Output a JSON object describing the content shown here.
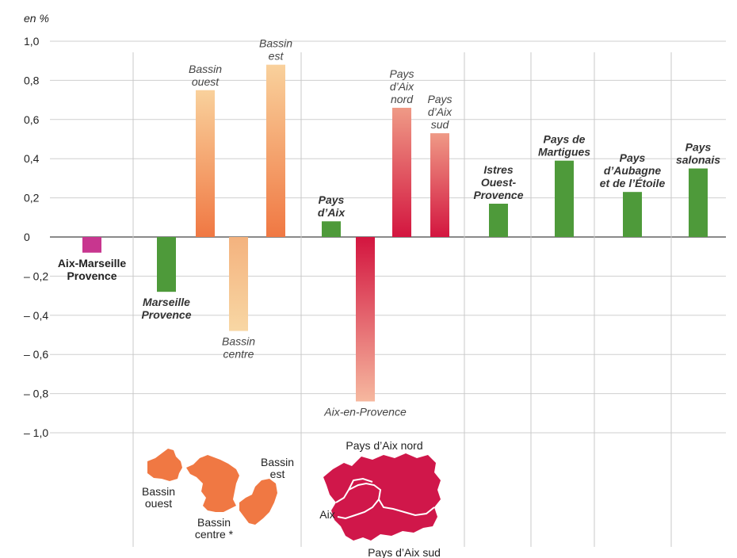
{
  "chart_data": {
    "type": "bar",
    "unit_label": "en %",
    "ylim": [
      -1.0,
      1.0
    ],
    "y_ticks": [
      "1,0",
      "0,8",
      "0,6",
      "0,4",
      "0,2",
      "0",
      "– 0,2",
      "– 0,4",
      "– 0,6",
      "– 0,8",
      "– 1,0"
    ],
    "y_tick_values": [
      1.0,
      0.8,
      0.6,
      0.4,
      0.2,
      0,
      -0.2,
      -0.4,
      -0.6,
      -0.8,
      -1.0
    ],
    "grid": true,
    "bars": [
      {
        "label": [
          "Aix-Marseille",
          "Provence"
        ],
        "value": -0.08,
        "style": "bold",
        "color": "#c8368f"
      },
      {
        "label": [
          "Marseille",
          "Provence"
        ],
        "value": -0.28,
        "style": "bold-italic",
        "color": "#4e9a3a"
      },
      {
        "label": [
          "Bassin",
          "ouest"
        ],
        "value": 0.75,
        "style": "italic",
        "color": "#f07843"
      },
      {
        "label": [
          "Bassin",
          "centre"
        ],
        "value": -0.48,
        "style": "italic",
        "color": "#f5c38f"
      },
      {
        "label": [
          "Bassin",
          "est"
        ],
        "value": 0.88,
        "style": "italic",
        "color": "#f07843"
      },
      {
        "label": [
          "Pays",
          "d’Aix"
        ],
        "value": 0.08,
        "style": "bold-italic",
        "color": "#4e9a3a"
      },
      {
        "label": [
          "Aix-en-Provence"
        ],
        "value": -0.84,
        "style": "italic",
        "color": "#d31b4a"
      },
      {
        "label": [
          "Pays",
          "d’Aix",
          "nord"
        ],
        "value": 0.66,
        "style": "italic",
        "color": "#d31b4a"
      },
      {
        "label": [
          "Pays",
          "d’Aix",
          "sud"
        ],
        "value": 0.53,
        "style": "italic",
        "color": "#d31b4a"
      },
      {
        "label": [
          "Istres",
          "Ouest-",
          "Provence"
        ],
        "value": 0.17,
        "style": "bold-italic",
        "color": "#4e9a3a"
      },
      {
        "label": [
          "Pays de",
          "Martigues"
        ],
        "value": 0.39,
        "style": "bold-italic",
        "color": "#4e9a3a"
      },
      {
        "label": [
          "Pays",
          "d’Aubagne",
          "et de l’Étoile"
        ],
        "value": 0.23,
        "style": "bold-italic",
        "color": "#4e9a3a"
      },
      {
        "label": [
          "Pays",
          "salonais"
        ],
        "value": 0.35,
        "style": "bold-italic",
        "color": "#4e9a3a"
      }
    ]
  },
  "maps": {
    "marseille_map": {
      "labels": [
        [
          "Bassin",
          "ouest"
        ],
        [
          "Bassin",
          "centre *"
        ],
        [
          "Bassin",
          "est"
        ]
      ],
      "color": "#f07843"
    },
    "aix_map": {
      "labels": [
        [
          "Pays d’Aix nord"
        ],
        [
          "Aix"
        ],
        [
          "Pays d’Aix sud"
        ]
      ],
      "color": "#d0174a"
    }
  }
}
